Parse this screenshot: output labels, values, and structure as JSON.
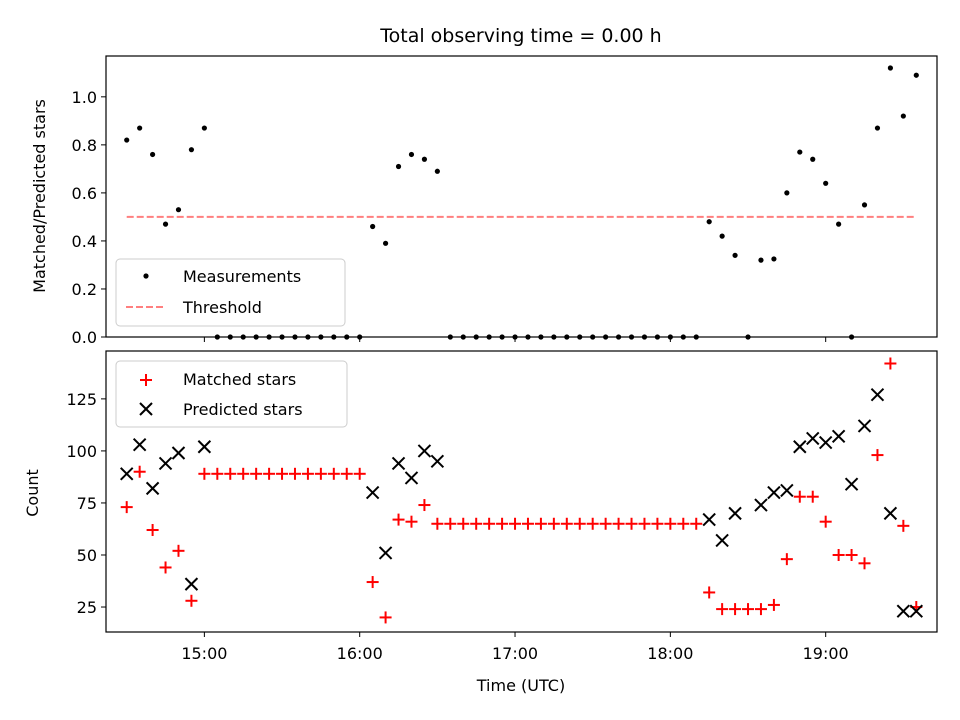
{
  "chart_data": [
    {
      "type": "scatter",
      "title": "Total observing time = 0.00 h",
      "xlabel": "",
      "ylabel": "Matched/Predicted stars",
      "xlim": [
        "14:22",
        "19:43"
      ],
      "ylim": [
        0,
        1.17
      ],
      "yticks": [
        "0.0",
        "0.2",
        "0.4",
        "0.6",
        "0.8",
        "1.0"
      ],
      "ytick_values": [
        0.0,
        0.2,
        0.4,
        0.6,
        0.8,
        1.0
      ],
      "legend": {
        "placement": "lower-left",
        "entries": [
          "Measurements",
          "Threshold"
        ]
      },
      "series": [
        {
          "name": "Measurements",
          "marker": "dot",
          "color": "#000000",
          "x": [
            "14:30",
            "14:35",
            "14:40",
            "14:45",
            "14:50",
            "14:55",
            "15:00",
            "15:05",
            "15:10",
            "15:15",
            "15:20",
            "15:25",
            "15:30",
            "15:35",
            "15:40",
            "15:45",
            "15:50",
            "15:55",
            "16:00",
            "16:05",
            "16:10",
            "16:15",
            "16:20",
            "16:25",
            "16:30",
            "16:35",
            "16:40",
            "16:45",
            "16:50",
            "16:55",
            "17:00",
            "17:05",
            "17:10",
            "17:15",
            "17:20",
            "17:25",
            "17:30",
            "17:35",
            "17:40",
            "17:45",
            "17:50",
            "17:55",
            "18:00",
            "18:05",
            "18:10",
            "18:15",
            "18:20",
            "18:25",
            "18:30",
            "18:35",
            "18:40",
            "18:45",
            "18:50",
            "18:55",
            "19:00",
            "19:05",
            "19:10",
            "19:15",
            "19:20",
            "19:25",
            "19:30",
            "19:35"
          ],
          "y": [
            0.82,
            0.87,
            0.76,
            0.47,
            0.53,
            0.78,
            0.87,
            0,
            0,
            0,
            0,
            0,
            0,
            0,
            0,
            0,
            0,
            0,
            0,
            0.46,
            0.39,
            0.71,
            0.76,
            0.74,
            0.69,
            0,
            0,
            0,
            0,
            0,
            0,
            0,
            0,
            0,
            0,
            0,
            0,
            0,
            0,
            0,
            0,
            0,
            0,
            0,
            0,
            0.48,
            0.42,
            0.34,
            0,
            0.32,
            0.325,
            0.6,
            0.77,
            0.74,
            0.64,
            0.47,
            0,
            0.55,
            0.87,
            1.12,
            0.92,
            1.09
          ]
        },
        {
          "name": "Threshold",
          "style": "dashed",
          "color": "#ff7f7f",
          "x": [
            "14:30",
            "19:35"
          ],
          "y": [
            0.5,
            0.5
          ]
        }
      ]
    },
    {
      "type": "scatter",
      "title": "",
      "xlabel": "Time (UTC)",
      "ylabel": "Count",
      "xlim": [
        "14:22",
        "19:43"
      ],
      "ylim": [
        13,
        148
      ],
      "xticks": [
        "15:00",
        "16:00",
        "17:00",
        "18:00",
        "19:00"
      ],
      "yticks": [
        "25",
        "50",
        "75",
        "100",
        "125"
      ],
      "ytick_values": [
        25,
        50,
        75,
        100,
        125
      ],
      "legend": {
        "placement": "upper-left",
        "entries": [
          "Matched stars",
          "Predicted stars"
        ]
      },
      "series": [
        {
          "name": "Matched stars",
          "marker": "plus",
          "color": "#ff0000",
          "x": [
            "14:30",
            "14:35",
            "14:40",
            "14:45",
            "14:50",
            "14:55",
            "15:00",
            "15:05",
            "15:10",
            "15:15",
            "15:20",
            "15:25",
            "15:30",
            "15:35",
            "15:40",
            "15:45",
            "15:50",
            "15:55",
            "16:00",
            "16:05",
            "16:10",
            "16:15",
            "16:20",
            "16:25",
            "16:30",
            "16:35",
            "16:40",
            "16:45",
            "16:50",
            "16:55",
            "17:00",
            "17:05",
            "17:10",
            "17:15",
            "17:20",
            "17:25",
            "17:30",
            "17:35",
            "17:40",
            "17:45",
            "17:50",
            "17:55",
            "18:00",
            "18:05",
            "18:10",
            "18:15",
            "18:20",
            "18:25",
            "18:30",
            "18:35",
            "18:40",
            "18:45",
            "18:50",
            "18:55",
            "19:00",
            "19:05",
            "19:10",
            "19:15",
            "19:20",
            "19:25",
            "19:30",
            "19:35"
          ],
          "y": [
            73,
            90,
            62,
            44,
            52,
            28,
            89,
            89,
            89,
            89,
            89,
            89,
            89,
            89,
            89,
            89,
            89,
            89,
            89,
            37,
            20,
            67,
            66,
            74,
            65,
            65,
            65,
            65,
            65,
            65,
            65,
            65,
            65,
            65,
            65,
            65,
            65,
            65,
            65,
            65,
            65,
            65,
            65,
            65,
            65,
            32,
            24,
            24,
            24,
            24,
            26,
            48,
            78,
            78,
            66,
            50,
            50,
            46,
            98,
            142,
            64,
            25
          ]
        },
        {
          "name": "Predicted stars",
          "marker": "x",
          "color": "#000000",
          "x": [
            "14:30",
            "14:35",
            "14:40",
            "14:45",
            "14:50",
            "14:55",
            "15:00",
            "16:05",
            "16:10",
            "16:15",
            "16:20",
            "16:25",
            "16:30",
            "18:15",
            "18:20",
            "18:25",
            "18:35",
            "18:40",
            "18:45",
            "18:50",
            "18:55",
            "19:00",
            "19:05",
            "19:10",
            "19:15",
            "19:20",
            "19:25",
            "19:30",
            "19:35"
          ],
          "y": [
            89,
            103,
            82,
            94,
            99,
            36,
            102,
            80,
            51,
            94,
            87,
            100,
            95,
            67,
            57,
            70,
            74,
            80,
            81,
            102,
            106,
            104,
            107,
            84,
            112,
            127,
            70,
            23,
            23
          ]
        }
      ]
    }
  ]
}
